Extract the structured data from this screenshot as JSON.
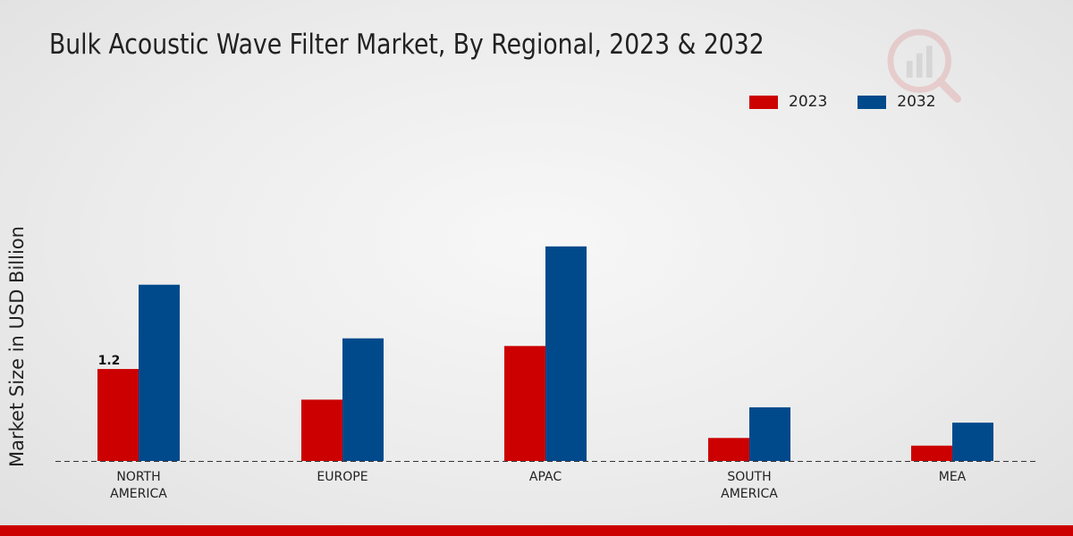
{
  "chart_data": {
    "type": "bar",
    "title": "Bulk Acoustic Wave Filter Market, By Regional, 2023 & 2032",
    "xlabel": "",
    "ylabel": "Market Size in USD Billion",
    "categories": [
      "NORTH AMERICA",
      "EUROPE",
      "APAC",
      "SOUTH AMERICA",
      "MEA"
    ],
    "category_lines": [
      [
        "NORTH",
        "AMERICA"
      ],
      [
        "EUROPE"
      ],
      [
        "APAC"
      ],
      [
        "SOUTH",
        "AMERICA"
      ],
      [
        "MEA"
      ]
    ],
    "series": [
      {
        "name": "2023",
        "color": "#cc0000",
        "values": [
          1.2,
          0.8,
          1.5,
          0.3,
          0.2
        ]
      },
      {
        "name": "2032",
        "color": "#004a8c",
        "values": [
          2.3,
          1.6,
          2.8,
          0.7,
          0.5
        ]
      }
    ],
    "data_labels": [
      {
        "series": 0,
        "index": 0,
        "text": "1.2"
      }
    ],
    "ylim": [
      0,
      4.5
    ],
    "grid": false,
    "legend_position": "top-right"
  }
}
